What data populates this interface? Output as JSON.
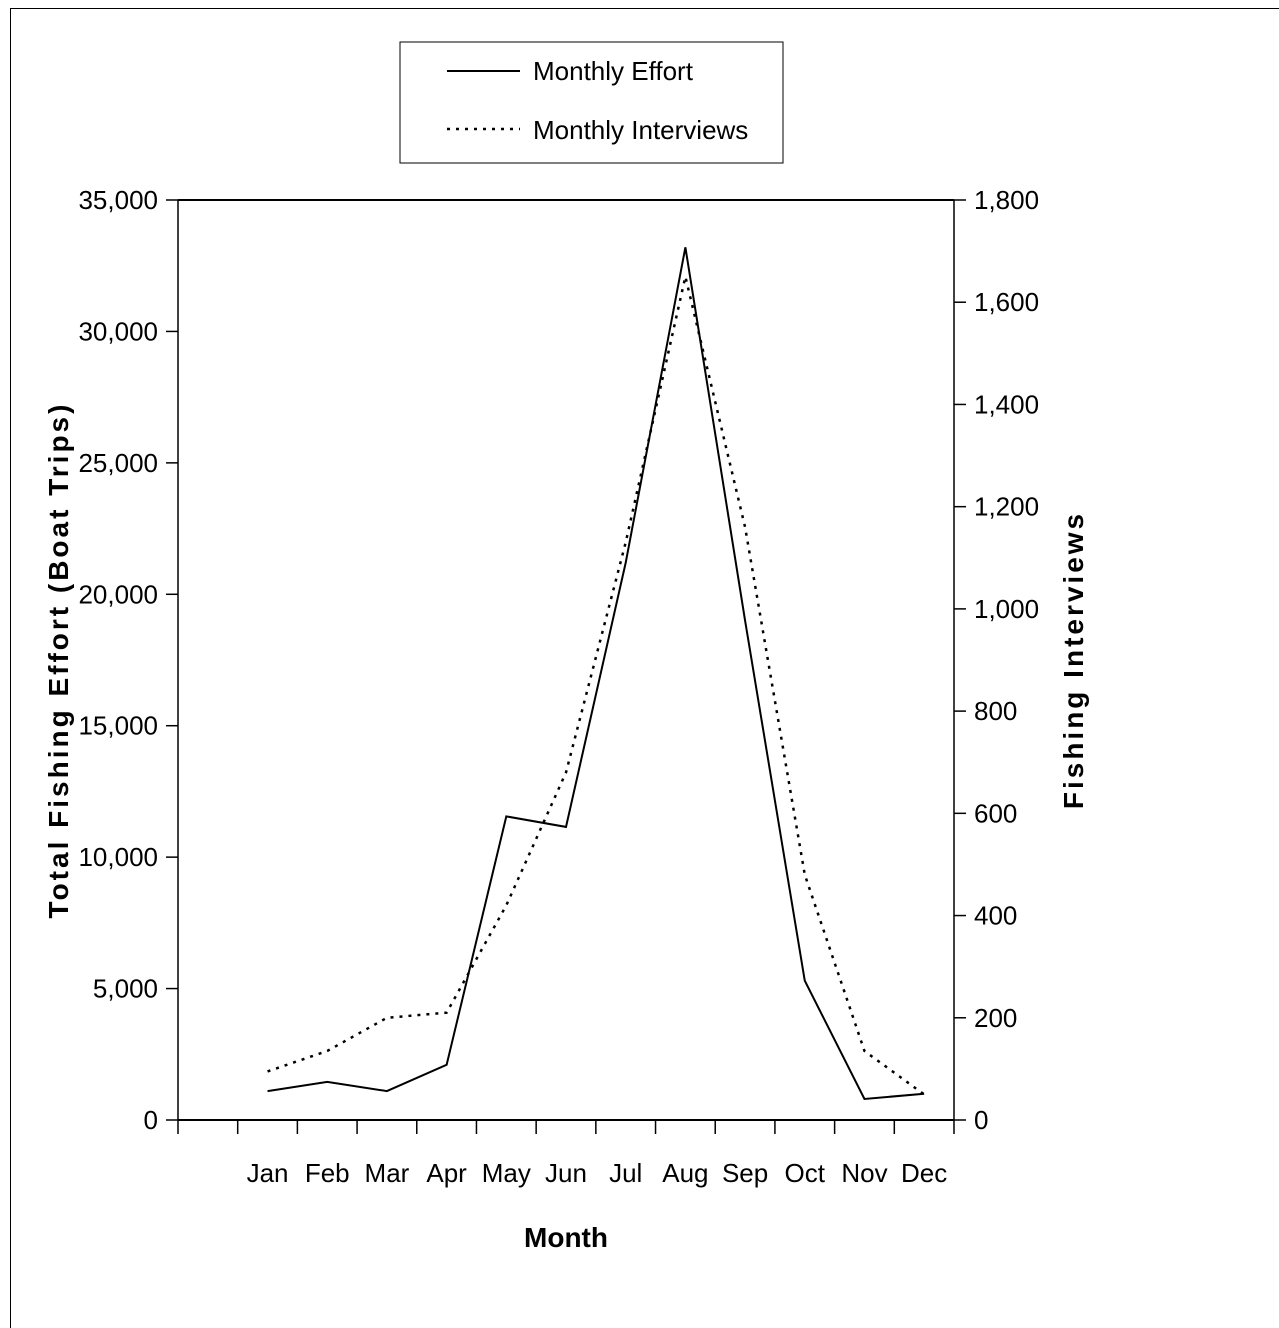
{
  "chart_data": {
    "type": "line",
    "categories": [
      "Jan",
      "Feb",
      "Mar",
      "Apr",
      "May",
      "Jun",
      "Jul",
      "Aug",
      "Sep",
      "Oct",
      "Nov",
      "Dec"
    ],
    "xlabel": "Month",
    "ylabel": "Total Fishing Effort (Boat Trips)",
    "y2label": "Fishing Interviews",
    "ylim": [
      0,
      35000
    ],
    "y2lim": [
      0,
      1800
    ],
    "yticks": [
      "0",
      "5,000",
      "10,000",
      "15,000",
      "20,000",
      "25,000",
      "30,000",
      "35,000"
    ],
    "y2ticks": [
      "0",
      "200",
      "400",
      "600",
      "800",
      "1,000",
      "1,200",
      "1,400",
      "1,600",
      "1,800"
    ],
    "legend_position": "top-center",
    "series": [
      {
        "name": "Monthly Effort",
        "axis": "left",
        "style": "solid",
        "values": [
          1100,
          1450,
          1100,
          2100,
          11550,
          11150,
          21200,
          33200,
          19000,
          5300,
          800,
          1000
        ]
      },
      {
        "name": "Monthly Interviews",
        "axis": "right",
        "style": "dotted",
        "values": [
          95,
          135,
          200,
          210,
          420,
          680,
          1130,
          1650,
          1160,
          480,
          135,
          50
        ]
      }
    ],
    "colors": {
      "line": "#000000",
      "background": "#ffffff"
    }
  }
}
